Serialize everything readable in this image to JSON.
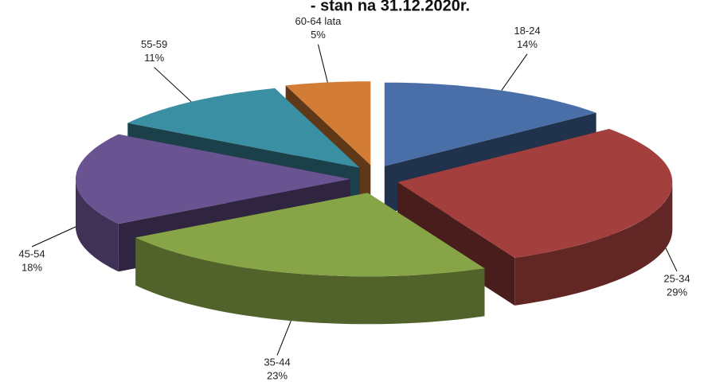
{
  "chart_data": {
    "type": "pie",
    "title": "- stan na 31.12.2020r.",
    "categories": [
      "18-24",
      "25-34",
      "35-44",
      "45-54",
      "55-59",
      "60-64 lata"
    ],
    "values": [
      14,
      29,
      23,
      18,
      11,
      5
    ],
    "value_labels": [
      "14%",
      "29%",
      "23%",
      "18%",
      "11%",
      "5%"
    ],
    "colors": [
      "#4a6fa8",
      "#a3403e",
      "#87a447",
      "#6a5391",
      "#3b8fa3",
      "#d27c36"
    ]
  }
}
